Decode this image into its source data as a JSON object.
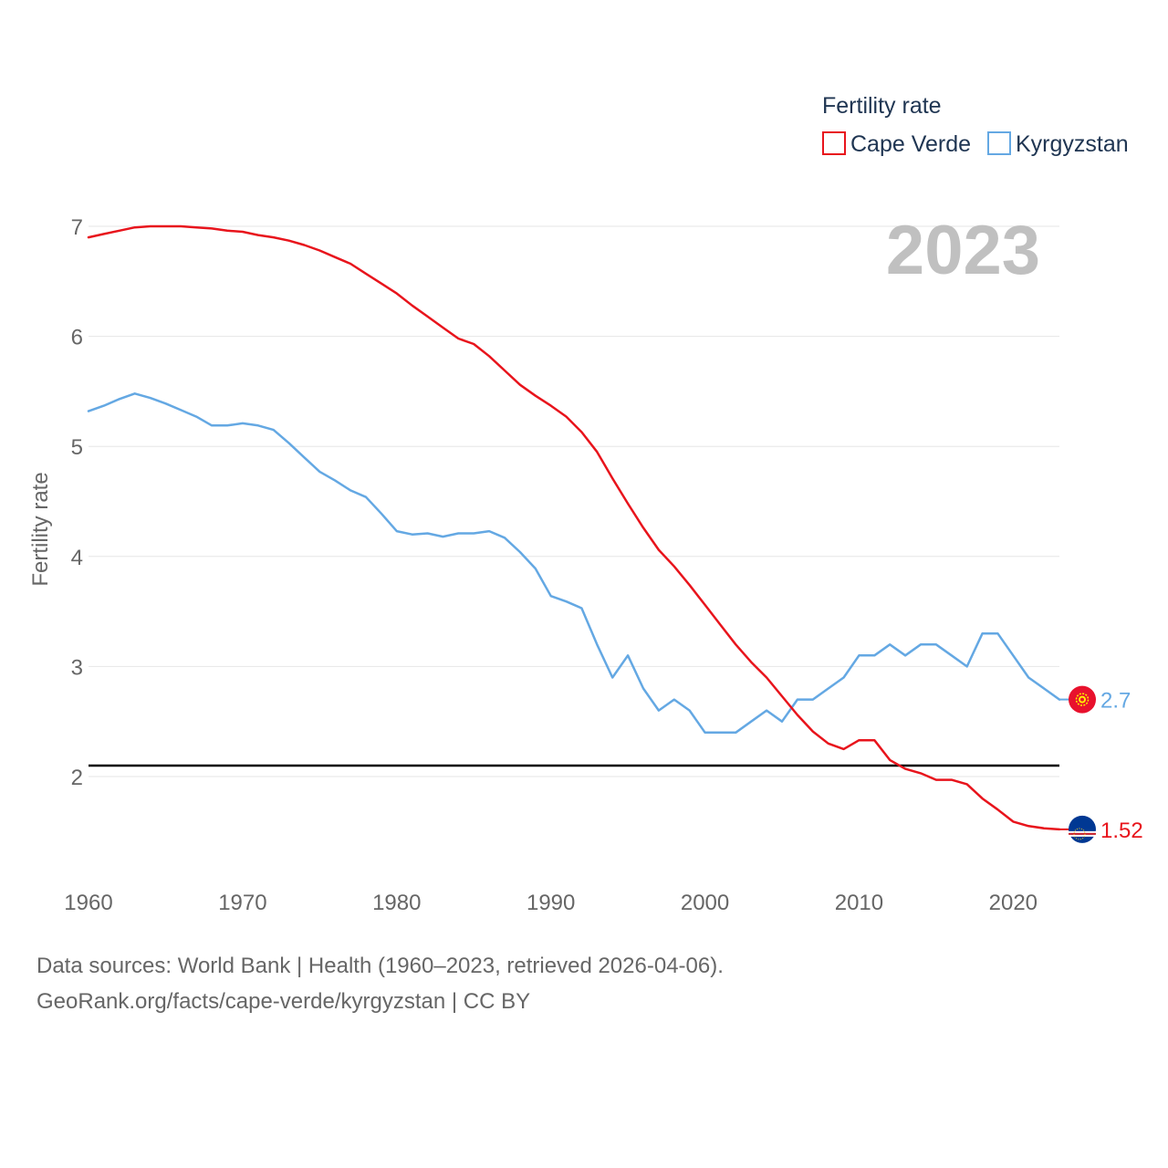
{
  "chart_data": {
    "type": "line",
    "legend_title": "Fertility rate",
    "ylabel": "Fertility rate",
    "year_label": "2023",
    "xlim": [
      1960,
      2023
    ],
    "ylim": [
      1.2,
      7.2
    ],
    "y_ticks": [
      2,
      3,
      4,
      5,
      6,
      7
    ],
    "x_ticks": [
      1960,
      1970,
      1980,
      1990,
      2000,
      2010,
      2020
    ],
    "reference_value": 2.1,
    "series": [
      {
        "name": "Cape Verde",
        "color": "#e8141c",
        "end_label": "1.52",
        "flag": "cape-verde-flag",
        "x": [
          1960,
          1961,
          1962,
          1963,
          1964,
          1965,
          1966,
          1967,
          1968,
          1969,
          1970,
          1971,
          1972,
          1973,
          1974,
          1975,
          1976,
          1977,
          1978,
          1979,
          1980,
          1981,
          1982,
          1983,
          1984,
          1985,
          1986,
          1987,
          1988,
          1989,
          1990,
          1991,
          1992,
          1993,
          1994,
          1995,
          1996,
          1997,
          1998,
          1999,
          2000,
          2001,
          2002,
          2003,
          2004,
          2005,
          2006,
          2007,
          2008,
          2009,
          2010,
          2011,
          2012,
          2013,
          2014,
          2015,
          2016,
          2017,
          2018,
          2019,
          2020,
          2021,
          2022,
          2023
        ],
        "values": [
          6.9,
          6.93,
          6.96,
          6.99,
          7.0,
          7.0,
          7.0,
          6.99,
          6.98,
          6.96,
          6.95,
          6.92,
          6.9,
          6.87,
          6.83,
          6.78,
          6.72,
          6.66,
          6.57,
          6.48,
          6.39,
          6.28,
          6.18,
          6.08,
          5.98,
          5.93,
          5.82,
          5.69,
          5.56,
          5.46,
          5.37,
          5.27,
          5.13,
          4.95,
          4.71,
          4.48,
          4.26,
          4.06,
          3.91,
          3.74,
          3.56,
          3.38,
          3.2,
          3.04,
          2.9,
          2.73,
          2.56,
          2.41,
          2.3,
          2.25,
          2.33,
          2.33,
          2.15,
          2.07,
          2.03,
          1.97,
          1.97,
          1.93,
          1.8,
          1.7,
          1.59,
          1.55,
          1.53,
          1.52
        ]
      },
      {
        "name": "Kyrgyzstan",
        "color": "#64a8e3",
        "end_label": "2.7",
        "flag": "kyrgyzstan-flag",
        "x": [
          1960,
          1961,
          1962,
          1963,
          1964,
          1965,
          1966,
          1967,
          1968,
          1969,
          1970,
          1971,
          1972,
          1973,
          1974,
          1975,
          1976,
          1977,
          1978,
          1979,
          1980,
          1981,
          1982,
          1983,
          1984,
          1985,
          1986,
          1987,
          1988,
          1989,
          1990,
          1991,
          1992,
          1993,
          1994,
          1995,
          1996,
          1997,
          1998,
          1999,
          2000,
          2001,
          2002,
          2003,
          2004,
          2005,
          2006,
          2007,
          2008,
          2009,
          2010,
          2011,
          2012,
          2013,
          2014,
          2015,
          2016,
          2017,
          2018,
          2019,
          2020,
          2021,
          2022,
          2023
        ],
        "values": [
          5.32,
          5.37,
          5.43,
          5.48,
          5.44,
          5.39,
          5.33,
          5.27,
          5.19,
          5.19,
          5.21,
          5.19,
          5.15,
          5.03,
          4.9,
          4.77,
          4.69,
          4.6,
          4.54,
          4.39,
          4.23,
          4.2,
          4.21,
          4.18,
          4.21,
          4.21,
          4.23,
          4.17,
          4.04,
          3.89,
          3.64,
          3.59,
          3.53,
          3.2,
          2.9,
          3.1,
          2.8,
          2.6,
          2.7,
          2.6,
          2.4,
          2.4,
          2.4,
          2.5,
          2.6,
          2.5,
          2.7,
          2.7,
          2.8,
          2.9,
          3.1,
          3.1,
          3.2,
          3.1,
          3.2,
          3.2,
          3.1,
          3.0,
          3.3,
          3.3,
          3.1,
          2.9,
          2.8,
          2.7
        ]
      }
    ]
  },
  "footer": {
    "source_line": "Data sources: World Bank | Health (1960–2023, retrieved 2026-04-06).",
    "site_line": "GeoRank.org/facts/cape-verde/kyrgyzstan | CC BY"
  }
}
